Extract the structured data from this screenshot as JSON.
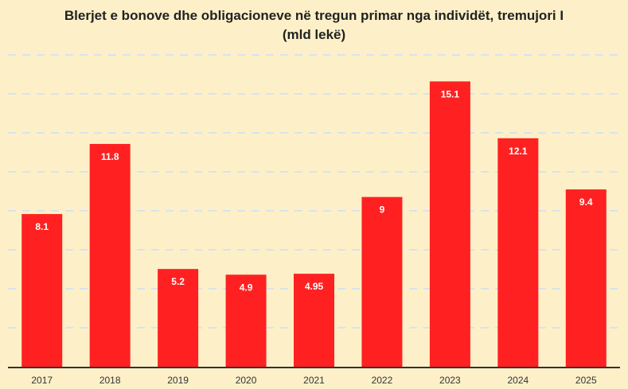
{
  "chart_data": {
    "type": "bar",
    "title_line1": "Blerjet e bonove dhe obligacioneve në tregun primar nga individët, tremujori I",
    "title_line2": "(mld lekë)",
    "categories": [
      "2017",
      "2018",
      "2019",
      "2020",
      "2021",
      "2022",
      "2023",
      "2024",
      "2025"
    ],
    "values": [
      8.1,
      11.8,
      5.2,
      4.9,
      4.95,
      9,
      15.1,
      12.1,
      9.4
    ],
    "value_labels": [
      "8.1",
      "11.8",
      "5.2",
      "4.9",
      "4.95",
      "9",
      "15.1",
      "12.1",
      "9.4"
    ],
    "ylim": [
      0,
      16.5
    ],
    "grid": true,
    "colors": {
      "bar": "#ff2121",
      "background": "#fdf0c8",
      "grid": "#d7e3ee",
      "label": "#ffffff"
    }
  }
}
